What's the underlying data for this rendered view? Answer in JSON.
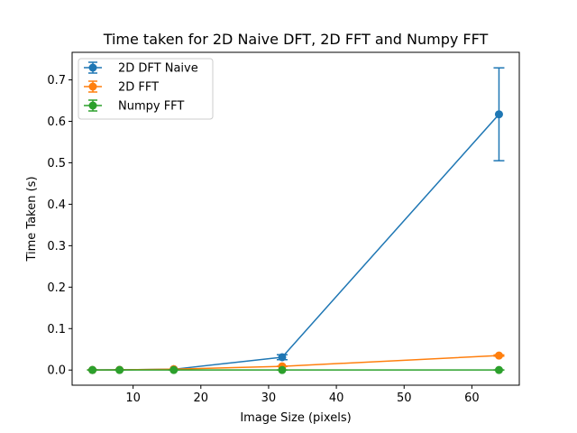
{
  "chart_data": {
    "type": "line",
    "title": "Time taken for 2D Naive DFT, 2D FFT and Numpy FFT",
    "xlabel": "Image Size (pixels)",
    "ylabel": "Time Taken (s)",
    "xlim": [
      1.0,
      67.0
    ],
    "ylim": [
      -0.0365,
      0.7665
    ],
    "xticks": [
      10,
      20,
      30,
      40,
      50,
      60
    ],
    "xtick_labels": [
      "10",
      "20",
      "30",
      "40",
      "50",
      "60"
    ],
    "yticks": [
      0.0,
      0.1,
      0.2,
      0.3,
      0.4,
      0.5,
      0.6,
      0.7
    ],
    "ytick_labels": [
      "0.0",
      "0.1",
      "0.2",
      "0.3",
      "0.4",
      "0.5",
      "0.6",
      "0.7"
    ],
    "grid": false,
    "legend_position": "top-left",
    "x": [
      4,
      8,
      16,
      32,
      64
    ],
    "series": [
      {
        "name": "2D DFT Naive",
        "color": "#1f77b4",
        "values": [
          0.0002,
          0.0005,
          0.002,
          0.031,
          0.617
        ],
        "errors": [
          0.0,
          0.0,
          0.0,
          0.006,
          0.112
        ]
      },
      {
        "name": "2D FFT",
        "color": "#ff7f0e",
        "values": [
          0.0002,
          0.0005,
          0.002,
          0.009,
          0.035
        ],
        "errors": [
          0.0,
          0.0,
          0.0,
          0.0,
          0.0015
        ]
      },
      {
        "name": "Numpy FFT",
        "color": "#2ca02c",
        "values": [
          0.0001,
          0.0001,
          0.0001,
          0.0001,
          0.0002
        ],
        "errors": [
          0.0,
          0.0,
          0.0,
          0.0,
          0.0
        ]
      }
    ]
  }
}
